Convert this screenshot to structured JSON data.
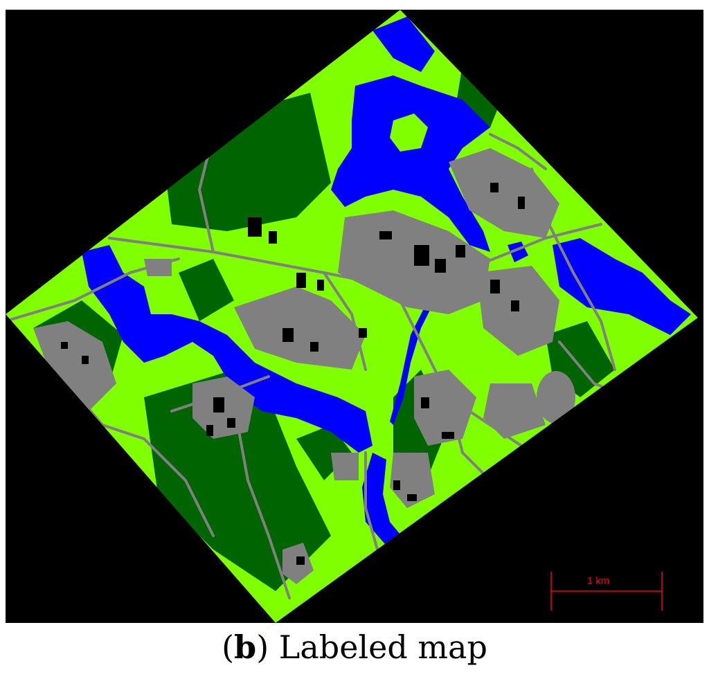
{
  "colors": {
    "background": "#000000",
    "dense_vegetation": "#006400",
    "light_vegetation": "#80ff00",
    "water": "#0000ff",
    "roads_paved": "#808080",
    "buildings": "#000000",
    "scale_bar": "#ff0000"
  },
  "scale_bar": {
    "label": "1 km"
  },
  "caption": {
    "open": "(",
    "letter": "b",
    "close": ")",
    "text": "Labeled map"
  }
}
